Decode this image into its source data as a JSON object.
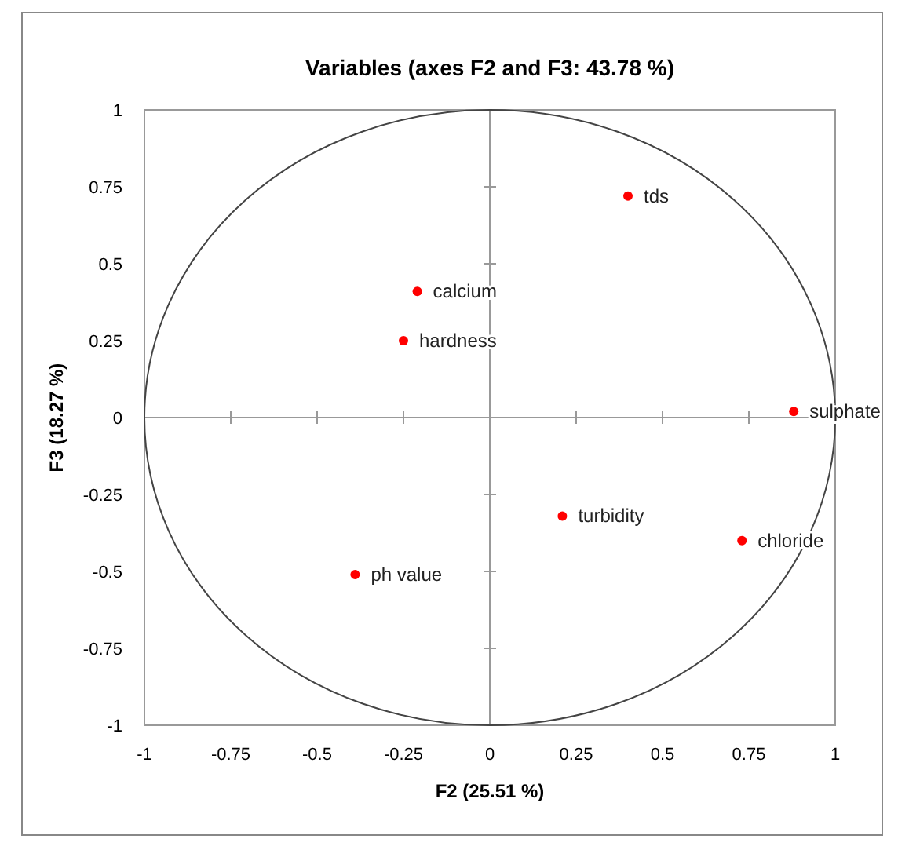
{
  "chart_data": {
    "type": "scatter",
    "title": "Variables (axes F2 and F3: 43.78 %)",
    "xlabel": "F2 (25.51 %)",
    "ylabel": "F3 (18.27 %)",
    "xlim": [
      -1,
      1
    ],
    "ylim": [
      -1,
      1
    ],
    "xticks": [
      -1,
      -0.75,
      -0.5,
      -0.25,
      0,
      0.25,
      0.5,
      0.75,
      1
    ],
    "yticks": [
      -1,
      -0.75,
      -0.5,
      -0.25,
      0,
      0.25,
      0.5,
      0.75,
      1
    ],
    "marker": "circle",
    "series": [
      {
        "name": "tds",
        "color": "#ff0000",
        "x": [
          0.4
        ],
        "values": [
          0.72
        ]
      },
      {
        "name": "calcium",
        "color": "#ff0000",
        "x": [
          -0.21
        ],
        "values": [
          0.41
        ]
      },
      {
        "name": "hardness",
        "color": "#ff0000",
        "x": [
          -0.25
        ],
        "values": [
          0.25
        ]
      },
      {
        "name": "sulphate",
        "color": "#ff0000",
        "x": [
          0.88
        ],
        "values": [
          0.02
        ]
      },
      {
        "name": "turbidity",
        "color": "#ff0000",
        "x": [
          0.21
        ],
        "values": [
          -0.32
        ]
      },
      {
        "name": "chloride",
        "color": "#ff0000",
        "x": [
          0.73
        ],
        "values": [
          -0.4
        ]
      },
      {
        "name": "ph value",
        "color": "#ff0000",
        "x": [
          -0.39
        ],
        "values": [
          -0.51
        ]
      }
    ]
  }
}
